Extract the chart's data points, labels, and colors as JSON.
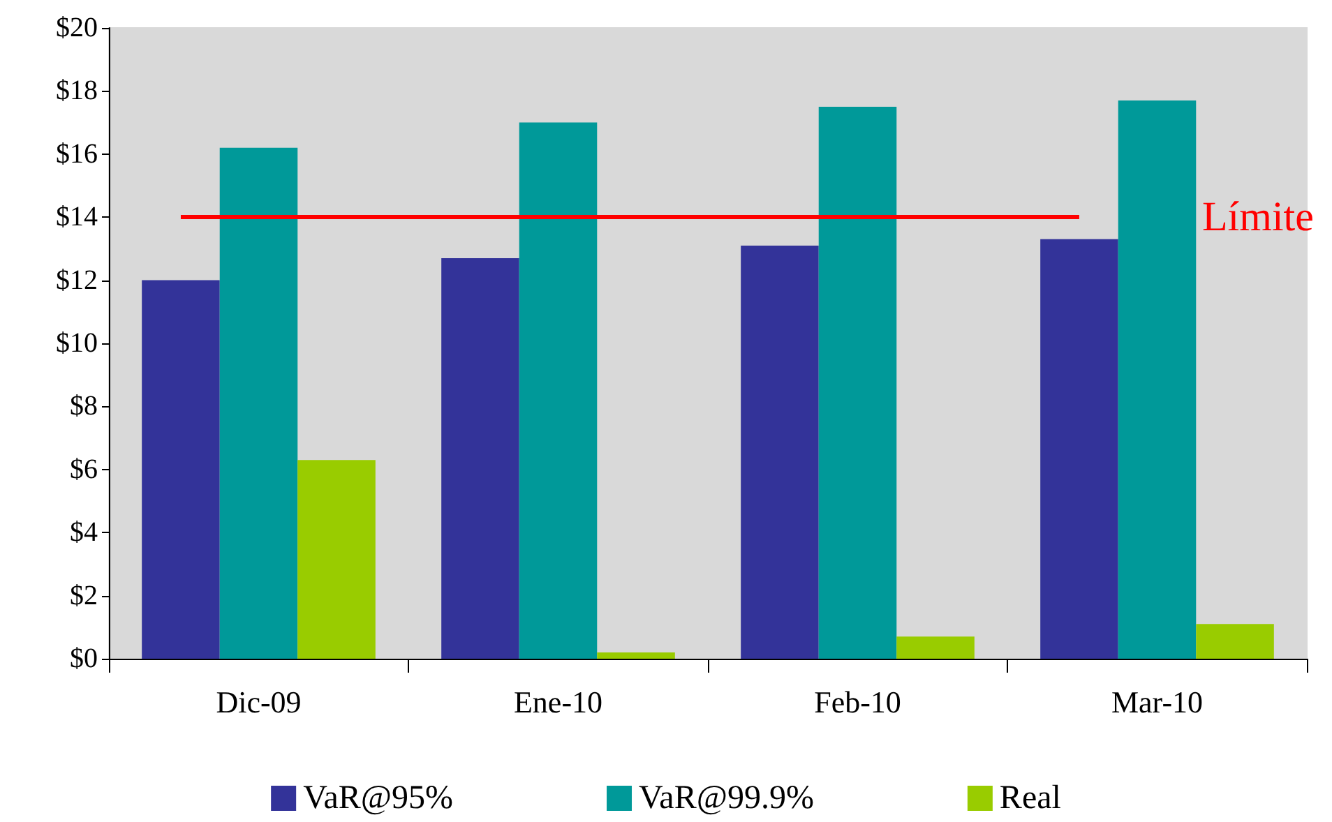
{
  "chart_data": {
    "type": "bar",
    "categories": [
      "Dic-09",
      "Ene-10",
      "Feb-10",
      "Mar-10"
    ],
    "series": [
      {
        "name": "VaR@95%",
        "color": "#333399",
        "values": [
          12.0,
          12.7,
          13.1,
          13.3
        ]
      },
      {
        "name": "VaR@99.9%",
        "color": "#009999",
        "values": [
          16.2,
          17.0,
          17.5,
          17.7
        ]
      },
      {
        "name": "Real",
        "color": "#99cc00",
        "values": [
          6.3,
          0.2,
          0.7,
          1.1
        ]
      }
    ],
    "ylim": [
      0,
      20
    ],
    "yticks": [
      {
        "value": 0,
        "label": "$0"
      },
      {
        "value": 2,
        "label": "$2"
      },
      {
        "value": 4,
        "label": "$4"
      },
      {
        "value": 6,
        "label": "$6"
      },
      {
        "value": 8,
        "label": "$8"
      },
      {
        "value": 10,
        "label": "$10"
      },
      {
        "value": 12,
        "label": "$12"
      },
      {
        "value": 14,
        "label": "$14"
      },
      {
        "value": 16,
        "label": "$16"
      },
      {
        "value": 18,
        "label": "$18"
      },
      {
        "value": 20,
        "label": "$20"
      }
    ],
    "ref_lines": [
      {
        "axis": "y",
        "value": 14,
        "label": "Límite",
        "color": "#ff0000"
      }
    ],
    "grid": false,
    "legend": "bottom"
  }
}
